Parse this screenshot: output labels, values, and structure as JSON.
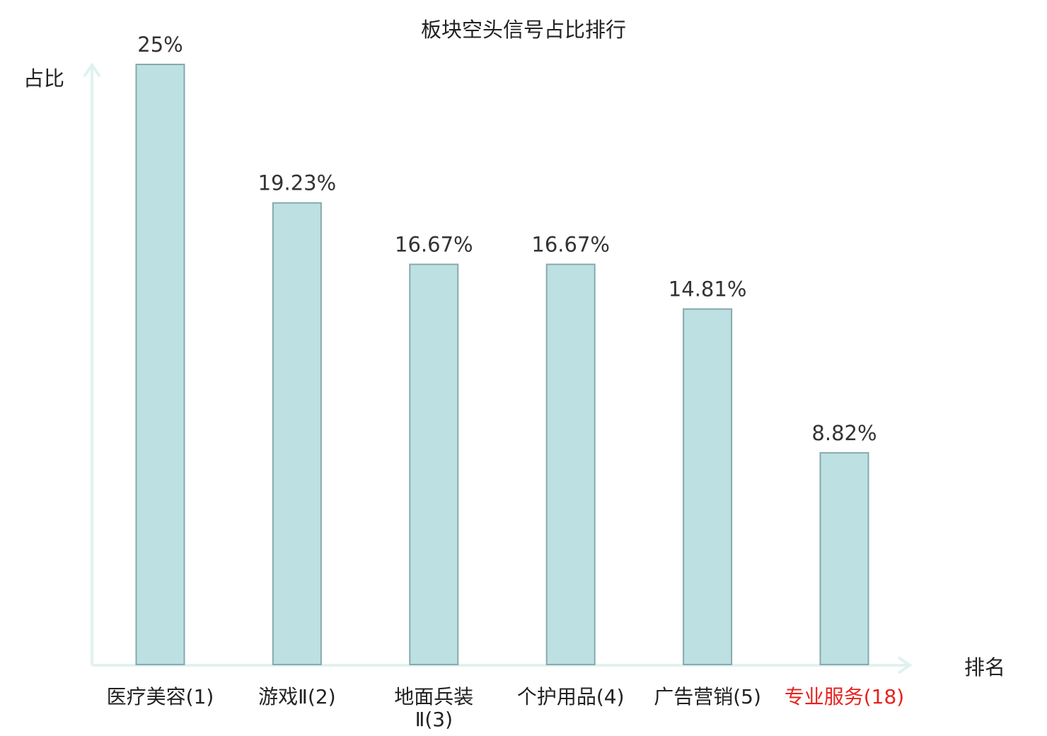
{
  "chart_data": {
    "type": "bar",
    "title": "板块空头信号占比排行",
    "ylabel": "占比",
    "xlabel": "排名",
    "categories": [
      [
        "医疗美容(1)"
      ],
      [
        "游戏Ⅱ(2)"
      ],
      [
        "地面兵装",
        "Ⅱ(3)"
      ],
      [
        "个护用品(4)"
      ],
      [
        "广告营销(5)"
      ],
      [
        "专业服务(18)"
      ]
    ],
    "values": [
      25,
      19.23,
      16.67,
      16.67,
      14.81,
      8.82
    ],
    "data_labels": [
      "25%",
      "19.23%",
      "16.67%",
      "16.67%",
      "14.81%",
      "8.82%"
    ],
    "highlight_index": 5,
    "ylim": [
      0,
      25
    ],
    "grid": false,
    "colors": {
      "bar_fill": "#bde0e3",
      "bar_stroke": "#87a9ad",
      "axis": "#e0f2ef",
      "text": "#333333",
      "label": "#222222",
      "highlight": "#e8221e"
    }
  }
}
